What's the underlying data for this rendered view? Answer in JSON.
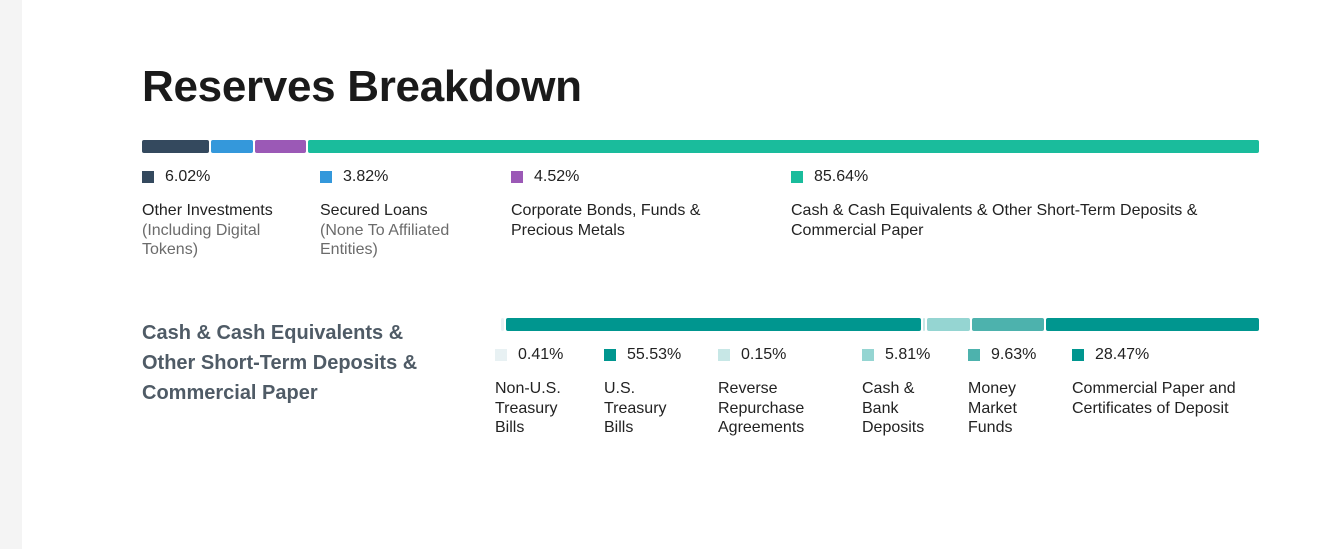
{
  "page": {
    "title": "Reserves Breakdown"
  },
  "chart_data": [
    {
      "type": "bar",
      "stacked": true,
      "orientation": "horizontal",
      "title": "Reserves Breakdown",
      "series": [
        {
          "value": 6.02,
          "label": "6.02%",
          "name": "Other Investments",
          "sub": "(Including Digital Tokens)",
          "color": "#34495e"
        },
        {
          "value": 3.82,
          "label": "3.82%",
          "name": "Secured Loans",
          "sub": "(None To Affiliated Entities)",
          "color": "#3498db"
        },
        {
          "value": 4.52,
          "label": "4.52%",
          "name": "Corporate Bonds, Funds & Precious Metals",
          "sub": "",
          "color": "#9b59b6"
        },
        {
          "value": 85.64,
          "label": "85.64%",
          "name": "Cash & Cash Equivalents & Other Short-Term Deposits & Commercial Paper",
          "sub": "",
          "color": "#1abc9c"
        }
      ]
    },
    {
      "type": "bar",
      "stacked": true,
      "orientation": "horizontal",
      "title": "Cash & Cash Equivalents & Other Short-Term Deposits & Commercial Paper",
      "series": [
        {
          "value": 0.41,
          "label": "0.41%",
          "name": "Non-U.S. Treasury Bills",
          "color": "#e8f1f3"
        },
        {
          "value": 55.53,
          "label": "55.53%",
          "name": "U.S. Treasury Bills",
          "color": "#00968f"
        },
        {
          "value": 0.15,
          "label": "0.15%",
          "name": "Reverse Repurchase Agreements",
          "color": "#c7e7e6"
        },
        {
          "value": 5.81,
          "label": "5.81%",
          "name": "Cash & Bank Deposits",
          "color": "#95d5d2"
        },
        {
          "value": 9.63,
          "label": "9.63%",
          "name": "Money Market Funds",
          "color": "#4db2ad"
        },
        {
          "value": 28.47,
          "label": "28.47%",
          "name": "Commercial Paper and Certificates of Deposit",
          "color": "#00968f"
        }
      ]
    }
  ]
}
